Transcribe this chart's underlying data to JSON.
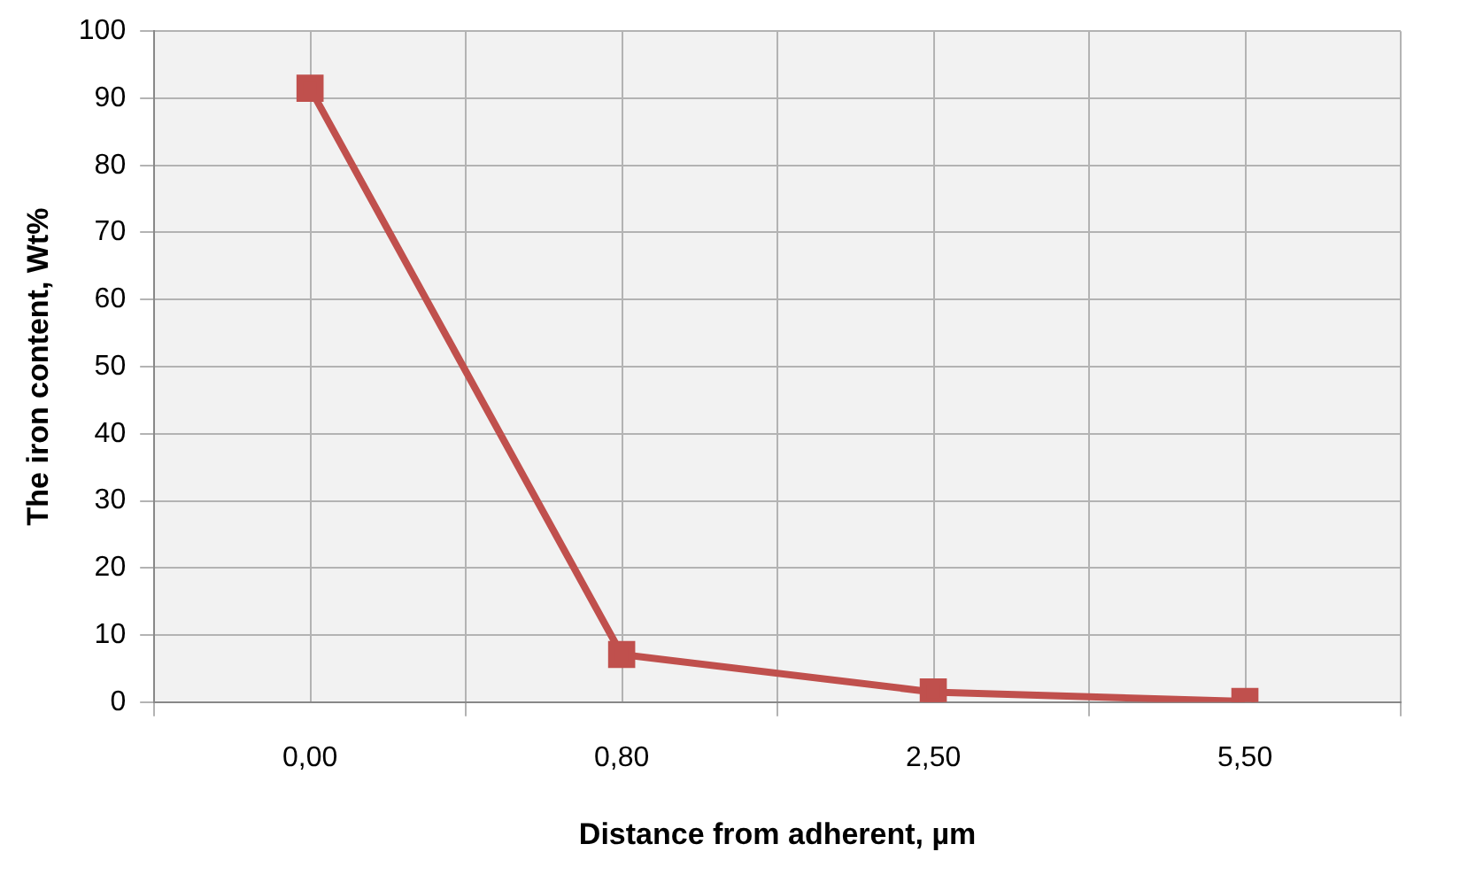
{
  "chart_data": {
    "type": "line",
    "xlabel": "Distance from adherent, µm",
    "ylabel": "The iron content, Wt%",
    "categories": [
      "0,00",
      "0,80",
      "2,50",
      "5,50"
    ],
    "series": [
      {
        "color": "#c0504d",
        "values": [
          91.5,
          7.1,
          1.5,
          0.1
        ]
      }
    ],
    "ylim": [
      0,
      100
    ],
    "yticks": [
      0,
      10,
      20,
      30,
      40,
      50,
      60,
      70,
      80,
      90,
      100
    ],
    "grid": true,
    "legend": false,
    "marker": "square",
    "line_style": "solid"
  }
}
